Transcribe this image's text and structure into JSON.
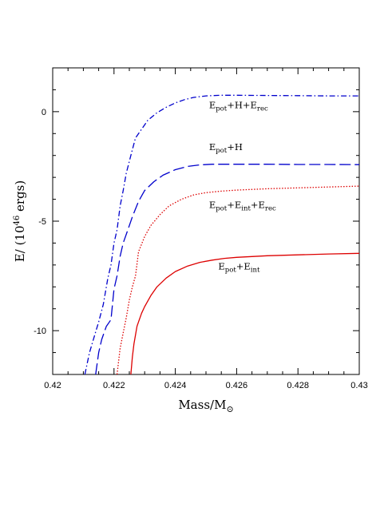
{
  "chart_data": {
    "type": "line",
    "xlabel": {
      "base": "Mass/M",
      "sun_symbol": "⊙"
    },
    "ylabel": {
      "prefix": "E/ (10",
      "exponent": "46",
      "suffix": " ergs)"
    },
    "xlim": [
      0.42,
      0.43
    ],
    "ylim": [
      -12,
      2
    ],
    "x_ticks": [
      0.42,
      0.422,
      0.424,
      0.426,
      0.428,
      0.43
    ],
    "x_tick_labels": [
      "0.42",
      "0.422",
      "0.424",
      "0.426",
      "0.428",
      "0.43"
    ],
    "y_ticks": [
      -10,
      -5,
      0
    ],
    "y_tick_labels": [
      "-10",
      "-5",
      "0"
    ],
    "series": [
      {
        "label": [
          "E",
          "pot",
          "+H+E",
          "rec"
        ],
        "color": "#0000cc",
        "style": "dashdot",
        "x": [
          0.42105,
          0.4212,
          0.42135,
          0.4215,
          0.42165,
          0.4218,
          0.4219,
          0.422,
          0.4221,
          0.4222,
          0.4223,
          0.4224,
          0.42255,
          0.4227,
          0.4229,
          0.4231,
          0.4234,
          0.4237,
          0.424,
          0.4243,
          0.4246,
          0.425,
          0.4255,
          0.426,
          0.427,
          0.428,
          0.429,
          0.43
        ],
        "y": [
          -12.0,
          -11.0,
          -10.3,
          -9.6,
          -8.8,
          -7.6,
          -7.0,
          -6.0,
          -5.4,
          -4.3,
          -3.6,
          -2.8,
          -2.0,
          -1.2,
          -0.8,
          -0.4,
          -0.05,
          0.2,
          0.4,
          0.55,
          0.65,
          0.72,
          0.75,
          0.75,
          0.74,
          0.73,
          0.72,
          0.72
        ]
      },
      {
        "label": [
          "E",
          "pot",
          "+H"
        ],
        "color": "#0000cc",
        "style": "longdash",
        "x": [
          0.4214,
          0.4215,
          0.4216,
          0.42175,
          0.4219,
          0.422,
          0.4221,
          0.4222,
          0.4223,
          0.42245,
          0.4226,
          0.4228,
          0.423,
          0.4233,
          0.4236,
          0.424,
          0.4244,
          0.4248,
          0.4252,
          0.426,
          0.427,
          0.428,
          0.429,
          0.43
        ],
        "y": [
          -12.0,
          -11.0,
          -10.4,
          -9.8,
          -9.5,
          -8.1,
          -7.5,
          -6.6,
          -6.0,
          -5.4,
          -4.8,
          -4.1,
          -3.6,
          -3.2,
          -2.9,
          -2.65,
          -2.5,
          -2.43,
          -2.4,
          -2.4,
          -2.4,
          -2.41,
          -2.41,
          -2.42
        ]
      },
      {
        "label": [
          "E",
          "pot",
          "+E",
          "int",
          "+E",
          "rec"
        ],
        "color": "#dd0000",
        "style": "dotted",
        "x": [
          0.4221,
          0.4222,
          0.4223,
          0.4224,
          0.4225,
          0.4226,
          0.4227,
          0.4228,
          0.423,
          0.4232,
          0.4235,
          0.4238,
          0.4242,
          0.4246,
          0.425,
          0.4255,
          0.426,
          0.427,
          0.428,
          0.429,
          0.43
        ],
        "y": [
          -12.0,
          -10.8,
          -10.1,
          -9.4,
          -8.6,
          -8.0,
          -7.5,
          -6.4,
          -5.7,
          -5.2,
          -4.7,
          -4.3,
          -4.0,
          -3.8,
          -3.7,
          -3.63,
          -3.58,
          -3.52,
          -3.48,
          -3.44,
          -3.4
        ]
      },
      {
        "label": [
          "E",
          "pot",
          "+E",
          "int"
        ],
        "color": "#dd0000",
        "style": "solid",
        "x": [
          0.42255,
          0.4226,
          0.42265,
          0.4227,
          0.42275,
          0.4228,
          0.4229,
          0.423,
          0.4232,
          0.4234,
          0.4237,
          0.424,
          0.4244,
          0.4248,
          0.4252,
          0.4256,
          0.426,
          0.427,
          0.428,
          0.429,
          0.43
        ],
        "y": [
          -12.0,
          -11.2,
          -10.6,
          -10.2,
          -9.8,
          -9.6,
          -9.2,
          -8.9,
          -8.4,
          -8.0,
          -7.6,
          -7.3,
          -7.05,
          -6.88,
          -6.78,
          -6.7,
          -6.65,
          -6.58,
          -6.54,
          -6.5,
          -6.47
        ]
      }
    ]
  }
}
